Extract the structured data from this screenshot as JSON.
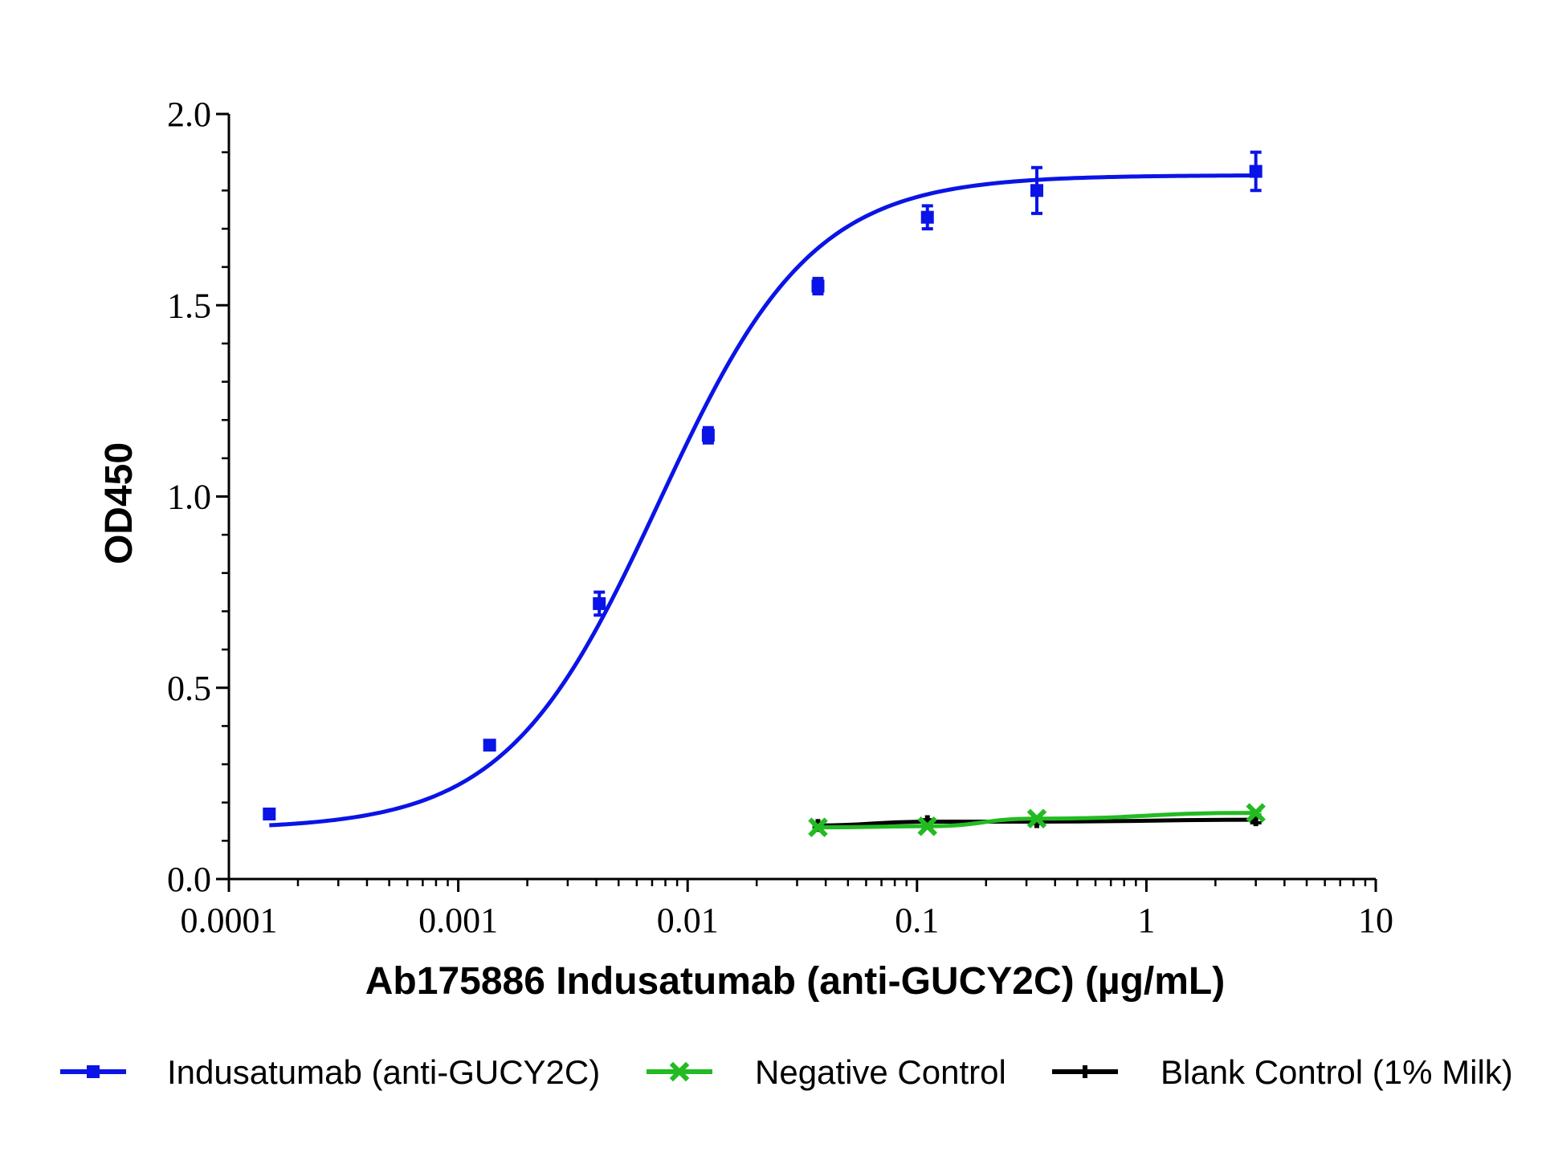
{
  "chart_data": {
    "type": "line",
    "xlabel": "Ab175886 Indusatumab (anti-GUCY2C) (µg/mL)",
    "ylabel": "OD450",
    "x_scale": "log",
    "xlim": [
      0.0001,
      10
    ],
    "ylim": [
      0,
      2
    ],
    "x_ticks": [
      {
        "value": 0.0001,
        "label": "0.0001"
      },
      {
        "value": 0.001,
        "label": "0.001"
      },
      {
        "value": 0.01,
        "label": "0.01"
      },
      {
        "value": 0.1,
        "label": "0.1"
      },
      {
        "value": 1,
        "label": "1"
      },
      {
        "value": 10,
        "label": "10"
      }
    ],
    "y_ticks": [
      {
        "value": 0,
        "label": "0.0"
      },
      {
        "value": 0.5,
        "label": "0.5"
      },
      {
        "value": 1,
        "label": "1.0"
      },
      {
        "value": 1.5,
        "label": "1.5"
      },
      {
        "value": 2,
        "label": "2.0"
      }
    ],
    "grid": false,
    "legend_position": "bottom",
    "series": [
      {
        "name": "Indusatumab (anti-GUCY2C)",
        "color": "#0a14e6",
        "marker": "square",
        "x": [
          0.00015,
          0.00137,
          0.00412,
          0.0123,
          0.037,
          0.111,
          0.333,
          3.0
        ],
        "y": [
          0.17,
          0.35,
          0.72,
          1.16,
          1.55,
          1.73,
          1.8,
          1.85
        ],
        "err": [
          0.01,
          0.01,
          0.03,
          0.02,
          0.02,
          0.03,
          0.06,
          0.05
        ],
        "fit": {
          "bottom": 0.13,
          "top": 1.84,
          "ec50": 0.0075,
          "hill": 1.3
        }
      },
      {
        "name": "Negative Control",
        "color": "#22bb22",
        "marker": "x",
        "x": [
          0.037,
          0.111,
          0.333,
          3.0
        ],
        "y": [
          0.135,
          0.138,
          0.158,
          0.173
        ],
        "err": [
          0.005,
          0.005,
          0.005,
          0.005
        ]
      },
      {
        "name": "Blank Control (1% Milk)",
        "color": "#000000",
        "marker": "tick",
        "x": [
          0.037,
          0.111,
          0.333,
          3.0
        ],
        "y": [
          0.14,
          0.15,
          0.15,
          0.155
        ],
        "err": [
          0.005,
          0.005,
          0.005,
          0.008
        ]
      }
    ]
  }
}
